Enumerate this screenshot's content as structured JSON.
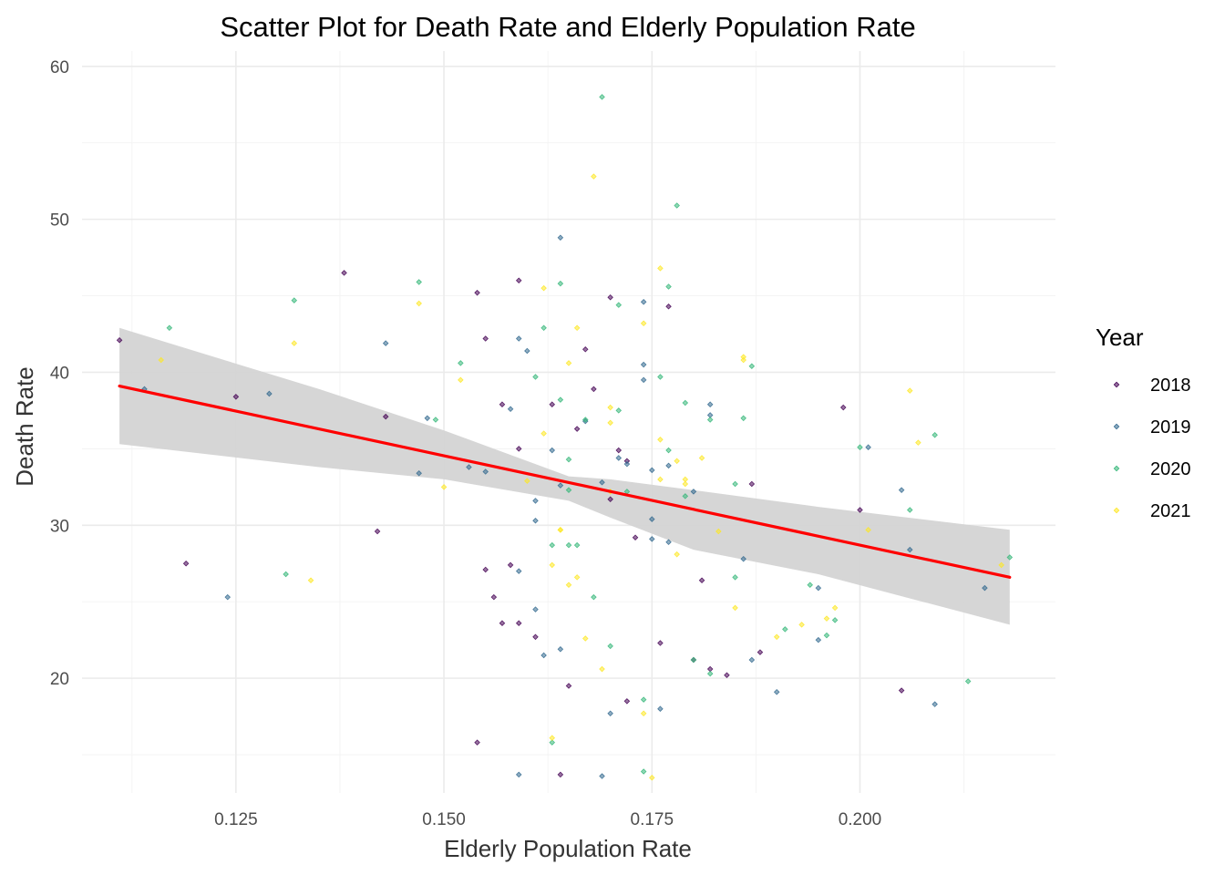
{
  "chart_data": {
    "type": "scatter",
    "title": "Scatter Plot for Death Rate and Elderly Population Rate",
    "xlabel": "Elderly Population Rate",
    "ylabel": "Death Rate",
    "xlim": [
      0.1065,
      0.2235
    ],
    "ylim": [
      12.5,
      61.0
    ],
    "x_ticks": [
      0.125,
      0.15,
      0.175,
      0.2
    ],
    "x_tick_labels": [
      "0.125",
      "0.150",
      "0.175",
      "0.200"
    ],
    "x_minor_ticks": [
      0.1125,
      0.1375,
      0.1625,
      0.1875,
      0.2125
    ],
    "y_ticks": [
      20,
      30,
      40,
      50,
      60
    ],
    "y_tick_labels": [
      "20",
      "30",
      "40",
      "50",
      "60"
    ],
    "y_minor_ticks": [
      15,
      25,
      35,
      45,
      55
    ],
    "grid": true,
    "legend": {
      "title": "Year",
      "placement": "right",
      "entries": [
        "2018",
        "2019",
        "2020",
        "2021"
      ]
    },
    "series": [
      {
        "name": "2018",
        "color": "#440154",
        "points": [
          [
            0.111,
            42.1
          ],
          [
            0.119,
            27.5
          ],
          [
            0.125,
            38.4
          ],
          [
            0.138,
            46.5
          ],
          [
            0.142,
            29.6
          ],
          [
            0.143,
            37.1
          ],
          [
            0.154,
            45.2
          ],
          [
            0.154,
            15.8
          ],
          [
            0.155,
            42.2
          ],
          [
            0.155,
            27.1
          ],
          [
            0.156,
            25.3
          ],
          [
            0.157,
            37.9
          ],
          [
            0.157,
            23.6
          ],
          [
            0.158,
            27.4
          ],
          [
            0.159,
            46.0
          ],
          [
            0.159,
            35.0
          ],
          [
            0.159,
            23.6
          ],
          [
            0.161,
            22.7
          ],
          [
            0.163,
            37.9
          ],
          [
            0.164,
            13.7
          ],
          [
            0.165,
            19.5
          ],
          [
            0.166,
            36.3
          ],
          [
            0.167,
            41.5
          ],
          [
            0.168,
            38.9
          ],
          [
            0.17,
            44.9
          ],
          [
            0.17,
            31.7
          ],
          [
            0.171,
            34.9
          ],
          [
            0.172,
            34.2
          ],
          [
            0.172,
            18.5
          ],
          [
            0.173,
            29.2
          ],
          [
            0.176,
            22.3
          ],
          [
            0.177,
            44.3
          ],
          [
            0.18,
            21.2
          ],
          [
            0.181,
            26.4
          ],
          [
            0.182,
            20.6
          ],
          [
            0.184,
            20.2
          ],
          [
            0.187,
            32.7
          ],
          [
            0.188,
            21.7
          ],
          [
            0.198,
            37.7
          ],
          [
            0.2,
            31.0
          ],
          [
            0.205,
            19.2
          ]
        ]
      },
      {
        "name": "2019",
        "color": "#31688E",
        "points": [
          [
            0.114,
            38.9
          ],
          [
            0.124,
            25.3
          ],
          [
            0.129,
            38.6
          ],
          [
            0.143,
            41.9
          ],
          [
            0.147,
            33.4
          ],
          [
            0.148,
            37.0
          ],
          [
            0.153,
            33.8
          ],
          [
            0.155,
            33.5
          ],
          [
            0.158,
            37.6
          ],
          [
            0.159,
            42.2
          ],
          [
            0.159,
            27.0
          ],
          [
            0.159,
            13.7
          ],
          [
            0.16,
            41.4
          ],
          [
            0.161,
            31.6
          ],
          [
            0.161,
            30.3
          ],
          [
            0.161,
            24.5
          ],
          [
            0.162,
            21.5
          ],
          [
            0.163,
            34.9
          ],
          [
            0.164,
            48.8
          ],
          [
            0.164,
            32.6
          ],
          [
            0.164,
            21.9
          ],
          [
            0.167,
            36.8
          ],
          [
            0.169,
            32.8
          ],
          [
            0.169,
            13.6
          ],
          [
            0.17,
            17.7
          ],
          [
            0.171,
            34.4
          ],
          [
            0.172,
            34.0
          ],
          [
            0.174,
            44.6
          ],
          [
            0.174,
            40.5
          ],
          [
            0.174,
            39.5
          ],
          [
            0.175,
            30.4
          ],
          [
            0.175,
            33.6
          ],
          [
            0.175,
            29.1
          ],
          [
            0.176,
            18.0
          ],
          [
            0.177,
            33.9
          ],
          [
            0.177,
            28.9
          ],
          [
            0.18,
            32.2
          ],
          [
            0.182,
            37.9
          ],
          [
            0.182,
            37.2
          ],
          [
            0.186,
            27.8
          ],
          [
            0.187,
            21.2
          ],
          [
            0.19,
            19.1
          ],
          [
            0.195,
            25.9
          ],
          [
            0.195,
            22.5
          ],
          [
            0.201,
            35.1
          ],
          [
            0.205,
            32.3
          ],
          [
            0.206,
            28.4
          ],
          [
            0.209,
            18.3
          ],
          [
            0.215,
            25.9
          ]
        ]
      },
      {
        "name": "2020",
        "color": "#35B779",
        "points": [
          [
            0.117,
            42.9
          ],
          [
            0.131,
            26.8
          ],
          [
            0.132,
            44.7
          ],
          [
            0.147,
            45.9
          ],
          [
            0.149,
            36.9
          ],
          [
            0.152,
            40.6
          ],
          [
            0.161,
            39.7
          ],
          [
            0.162,
            42.9
          ],
          [
            0.163,
            28.7
          ],
          [
            0.163,
            15.8
          ],
          [
            0.164,
            45.8
          ],
          [
            0.164,
            38.2
          ],
          [
            0.165,
            34.3
          ],
          [
            0.165,
            32.3
          ],
          [
            0.165,
            28.7
          ],
          [
            0.166,
            28.7
          ],
          [
            0.167,
            36.9
          ],
          [
            0.168,
            25.3
          ],
          [
            0.169,
            58.0
          ],
          [
            0.17,
            22.1
          ],
          [
            0.171,
            44.4
          ],
          [
            0.171,
            37.5
          ],
          [
            0.172,
            32.2
          ],
          [
            0.174,
            18.6
          ],
          [
            0.174,
            13.9
          ],
          [
            0.176,
            39.7
          ],
          [
            0.177,
            45.6
          ],
          [
            0.177,
            34.9
          ],
          [
            0.178,
            50.9
          ],
          [
            0.179,
            38.0
          ],
          [
            0.179,
            31.9
          ],
          [
            0.18,
            21.2
          ],
          [
            0.182,
            36.9
          ],
          [
            0.182,
            20.3
          ],
          [
            0.185,
            32.7
          ],
          [
            0.185,
            26.6
          ],
          [
            0.186,
            37.0
          ],
          [
            0.187,
            40.4
          ],
          [
            0.191,
            23.2
          ],
          [
            0.194,
            26.1
          ],
          [
            0.196,
            22.8
          ],
          [
            0.197,
            23.8
          ],
          [
            0.2,
            35.1
          ],
          [
            0.206,
            31.0
          ],
          [
            0.209,
            35.9
          ],
          [
            0.213,
            19.8
          ],
          [
            0.218,
            27.9
          ]
        ]
      },
      {
        "name": "2021",
        "color": "#FDE725",
        "points": [
          [
            0.116,
            40.8
          ],
          [
            0.132,
            41.9
          ],
          [
            0.134,
            26.4
          ],
          [
            0.147,
            44.5
          ],
          [
            0.15,
            32.5
          ],
          [
            0.152,
            39.5
          ],
          [
            0.16,
            32.9
          ],
          [
            0.162,
            45.5
          ],
          [
            0.162,
            36.0
          ],
          [
            0.163,
            27.4
          ],
          [
            0.163,
            16.1
          ],
          [
            0.164,
            29.7
          ],
          [
            0.164,
            29.7
          ],
          [
            0.165,
            40.6
          ],
          [
            0.165,
            26.1
          ],
          [
            0.166,
            42.9
          ],
          [
            0.166,
            26.6
          ],
          [
            0.167,
            22.6
          ],
          [
            0.168,
            52.8
          ],
          [
            0.169,
            20.6
          ],
          [
            0.17,
            37.7
          ],
          [
            0.17,
            36.7
          ],
          [
            0.17,
            32.2
          ],
          [
            0.174,
            43.2
          ],
          [
            0.174,
            17.7
          ],
          [
            0.175,
            13.5
          ],
          [
            0.176,
            46.8
          ],
          [
            0.176,
            35.6
          ],
          [
            0.176,
            33.0
          ],
          [
            0.178,
            34.2
          ],
          [
            0.178,
            28.1
          ],
          [
            0.179,
            33.0
          ],
          [
            0.179,
            32.7
          ],
          [
            0.181,
            34.4
          ],
          [
            0.183,
            29.6
          ],
          [
            0.185,
            24.6
          ],
          [
            0.186,
            41.0
          ],
          [
            0.186,
            40.8
          ],
          [
            0.19,
            22.7
          ],
          [
            0.193,
            23.5
          ],
          [
            0.196,
            23.9
          ],
          [
            0.197,
            24.6
          ],
          [
            0.201,
            29.7
          ],
          [
            0.206,
            38.8
          ],
          [
            0.207,
            35.4
          ],
          [
            0.217,
            27.4
          ]
        ]
      }
    ],
    "trend_line": {
      "method": "linear",
      "color": "#FF0000",
      "start": [
        0.111,
        39.1
      ],
      "end": [
        0.218,
        26.6
      ],
      "ci_band": {
        "color": "#d3d3d3",
        "x": [
          0.111,
          0.135,
          0.15,
          0.165,
          0.17,
          0.18,
          0.195,
          0.218
        ],
        "lower": [
          35.3,
          33.8,
          33.0,
          31.6,
          30.5,
          28.4,
          26.8,
          23.5
        ],
        "upper": [
          42.9,
          38.9,
          36.2,
          33.2,
          33.0,
          32.3,
          31.2,
          29.7
        ]
      }
    }
  }
}
